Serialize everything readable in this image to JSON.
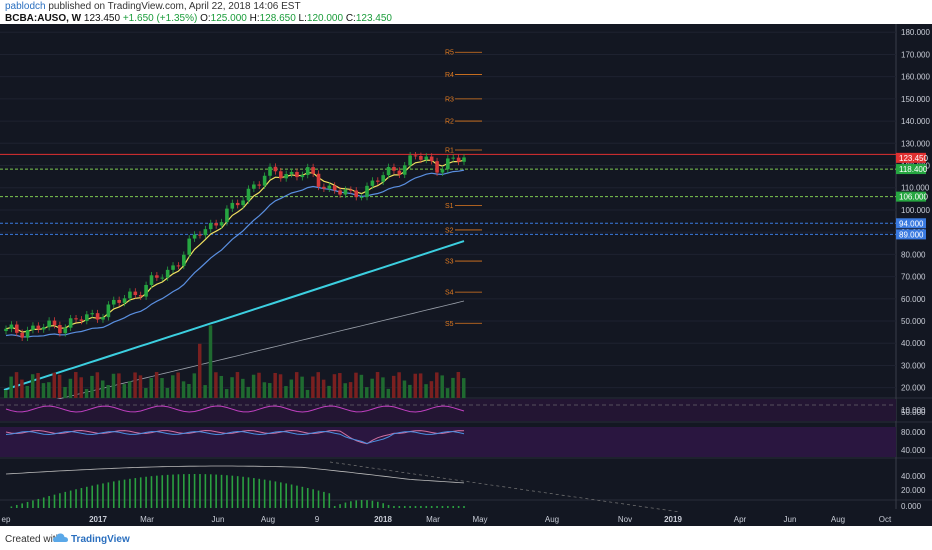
{
  "header": {
    "user": "pablodch",
    "published": " published on TradingView.com, April 22, 2018 14:06 EST",
    "symbol": "BCBA:AUSO, W",
    "price": "123.450",
    "change": "+1.650 (+1.35%)",
    "o_label": "O:",
    "o_value": "125.000",
    "h_label": "H:",
    "h_value": "128.650",
    "l_label": "L:",
    "l_value": "120.000",
    "c_label": "C:",
    "c_value": "123.450"
  },
  "footer": {
    "created_with": "Created with",
    "brand": "TradingView"
  },
  "colors": {
    "background": "#131722",
    "up": "#26a641",
    "down": "#d63a3a",
    "ema_fast": "#f0e060",
    "ema_mid": "#5a8fe0",
    "ema_slow": "#3ccfe0",
    "ema_long": "#9aa0aa",
    "pivot": "#e07a20",
    "red_line": "#e03030",
    "green_dotted": "#7ec850",
    "blue_dotted": "#3a7ae0",
    "rsi": "#c040c0",
    "oscillator_band": "#2a1640"
  },
  "chart_data": {
    "type": "candlestick",
    "symbol": "BCBA:AUSO",
    "interval": "W",
    "y_axis": {
      "ticks": [
        10,
        20,
        30,
        40,
        50,
        60,
        70,
        80,
        90,
        100,
        110,
        120,
        130,
        140,
        150,
        160,
        170,
        180
      ],
      "tick_labels": [
        "10.000",
        "20.000",
        "30.000",
        "40.000",
        "50.000",
        "60.000",
        "70.000",
        "80.000",
        "90.000",
        "100.000",
        "110.000",
        "120.000",
        "130.000",
        "140.000",
        "150.000",
        "160.000",
        "170.000",
        "180.000"
      ],
      "range": [
        5,
        181
      ]
    },
    "x_axis": {
      "tick_labels": [
        "ep",
        "2017",
        "Mar",
        "Jun",
        "Aug",
        "9",
        "2018",
        "Mar",
        "May",
        "Aug",
        "Nov",
        "2019",
        "Apr",
        "Jun",
        "Aug",
        "Oct"
      ]
    },
    "price_labels": [
      {
        "value": 123.45,
        "text": "123.450",
        "color": "#e03030"
      },
      {
        "value": 118.4,
        "text": "118.400",
        "color": "#26a641"
      },
      {
        "value": 106.0,
        "text": "106.000",
        "color": "#26a641"
      },
      {
        "value": 94.0,
        "text": "94.000",
        "color": "#3a7ae0"
      },
      {
        "value": 89.0,
        "text": "89.000",
        "color": "#3a7ae0"
      }
    ],
    "horizontal_lines": [
      {
        "value": 125.0,
        "style": "solid",
        "color": "#e03030"
      },
      {
        "value": 118.4,
        "style": "dotted",
        "color": "#7ec850"
      },
      {
        "value": 106.0,
        "style": "dotted",
        "color": "#7ec850"
      },
      {
        "value": 94.0,
        "style": "dotted",
        "color": "#3a7ae0"
      },
      {
        "value": 89.0,
        "style": "dotted",
        "color": "#3a7ae0"
      }
    ],
    "pivots": [
      {
        "label": "R5",
        "value": 171
      },
      {
        "label": "R4",
        "value": 161
      },
      {
        "label": "R3",
        "value": 150
      },
      {
        "label": "R2",
        "value": 140
      },
      {
        "label": "R1",
        "value": 127
      },
      {
        "label": "S1",
        "value": 102
      },
      {
        "label": "S2",
        "value": 91
      },
      {
        "label": "S3",
        "value": 77
      },
      {
        "label": "S4",
        "value": 63
      },
      {
        "label": "S5",
        "value": 49
      }
    ],
    "oscillators": {
      "rsi_ticks": [
        "50.000"
      ],
      "stoch_ticks": [
        "80.000",
        "40.000"
      ],
      "macd_ticks": [
        "40.000",
        "20.000",
        "0.000"
      ]
    }
  }
}
